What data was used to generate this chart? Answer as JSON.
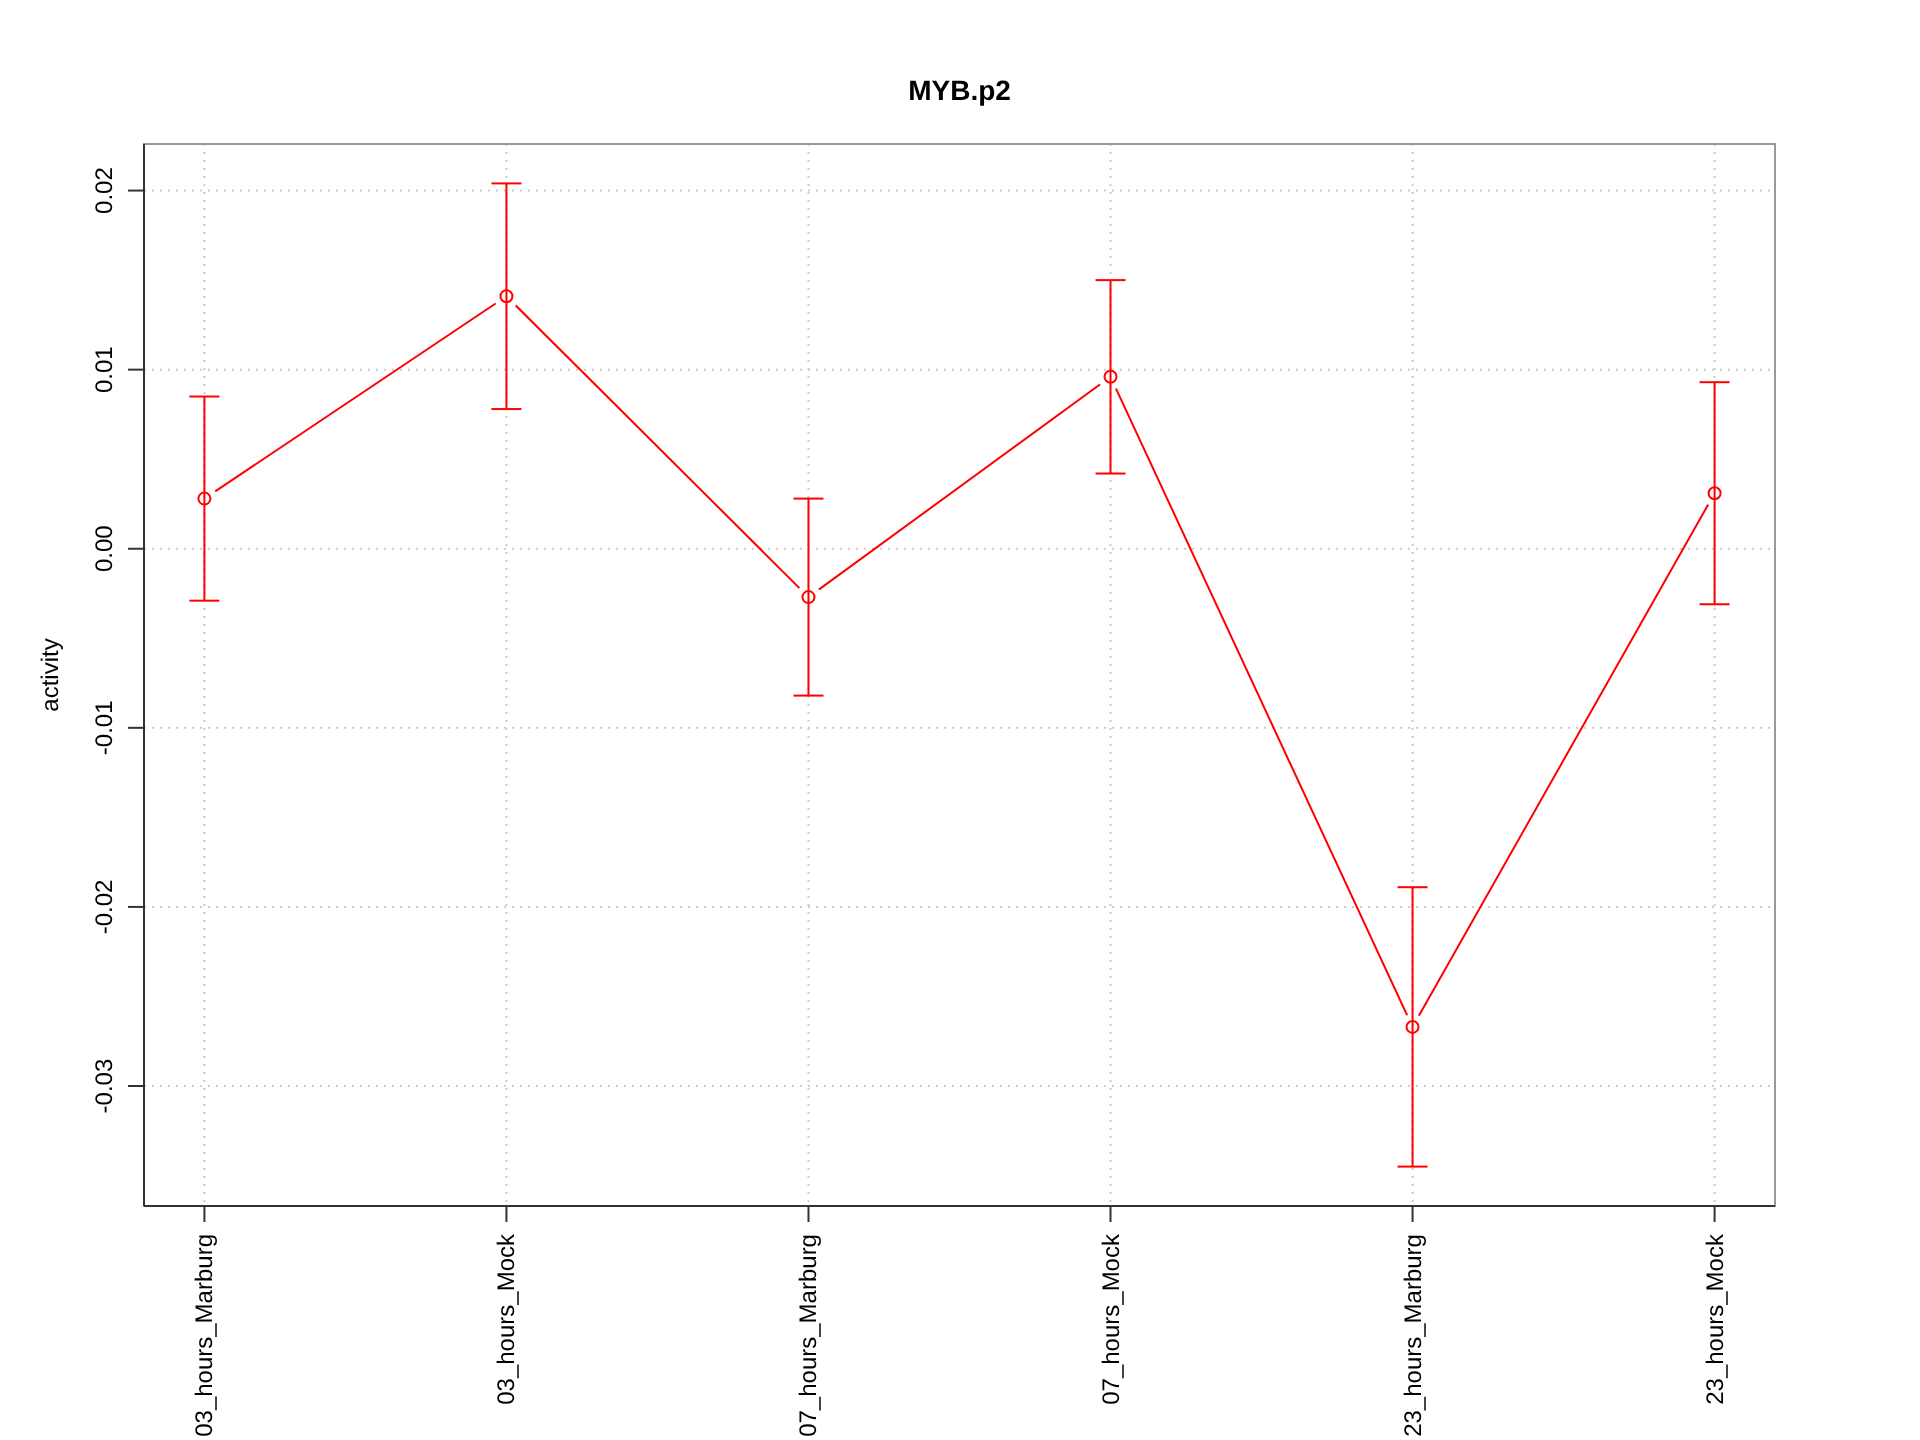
{
  "chart_data": {
    "type": "line",
    "title": "MYB.p2",
    "ylabel": "activity",
    "categories": [
      "03_hours_Marburg",
      "03_hours_Mock",
      "07_hours_Marburg",
      "07_hours_Mock",
      "23_hours_Marburg",
      "23_hours_Mock"
    ],
    "values": [
      0.0028,
      0.0141,
      -0.0027,
      0.0096,
      -0.0267,
      0.0031
    ],
    "errors": [
      0.0057,
      0.0063,
      0.0055,
      0.0054,
      0.0078,
      0.0062
    ],
    "color": "#ff0000",
    "ylim": [
      -0.0367,
      0.0226
    ],
    "yticks": [
      -0.03,
      -0.02,
      -0.01,
      {
        "value": 0,
        "label": "0.00"
      },
      0.01,
      0.02
    ],
    "grid": true,
    "marker": "circle"
  }
}
